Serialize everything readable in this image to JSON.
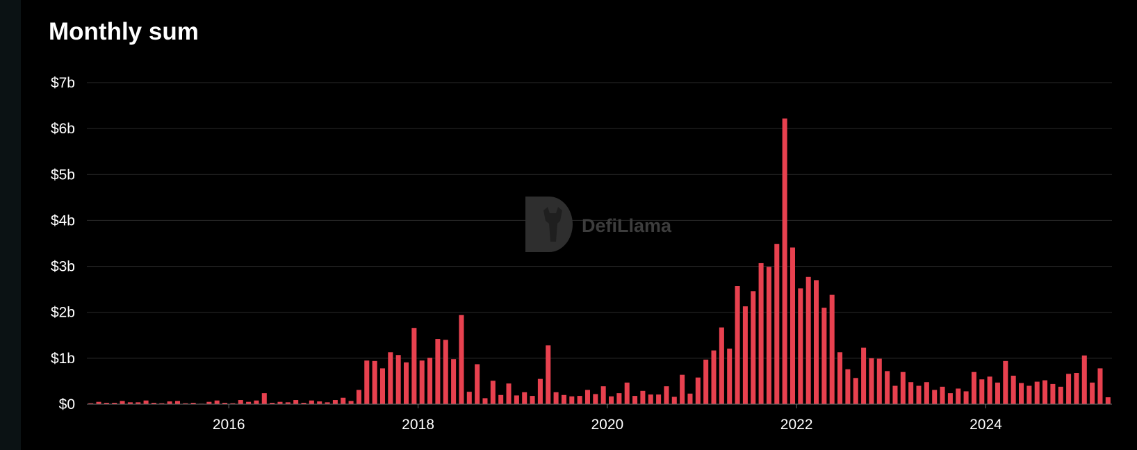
{
  "chart_data": {
    "type": "bar",
    "title": "Monthly sum",
    "xlabel": "",
    "ylabel": "",
    "x_start": "2014-07",
    "x_ticks": [
      "2016",
      "2018",
      "2020",
      "2022",
      "2024"
    ],
    "y_ticks": [
      "$0",
      "$1b",
      "$2b",
      "$3b",
      "$4b",
      "$5b",
      "$6b",
      "$7b"
    ],
    "ylim": [
      0,
      7
    ],
    "y_unit": "billion USD",
    "grid": true,
    "legend": "none",
    "bar_color": "#e8414f",
    "watermark": "DefiLlama",
    "x": [
      "2014-07",
      "2014-08",
      "2014-09",
      "2014-10",
      "2014-11",
      "2014-12",
      "2015-01",
      "2015-02",
      "2015-03",
      "2015-04",
      "2015-05",
      "2015-06",
      "2015-07",
      "2015-08",
      "2015-09",
      "2015-10",
      "2015-11",
      "2015-12",
      "2016-01",
      "2016-02",
      "2016-03",
      "2016-04",
      "2016-05",
      "2016-06",
      "2016-07",
      "2016-08",
      "2016-09",
      "2016-10",
      "2016-11",
      "2016-12",
      "2017-01",
      "2017-02",
      "2017-03",
      "2017-04",
      "2017-05",
      "2017-06",
      "2017-07",
      "2017-08",
      "2017-09",
      "2017-10",
      "2017-11",
      "2017-12",
      "2018-01",
      "2018-02",
      "2018-03",
      "2018-04",
      "2018-05",
      "2018-06",
      "2018-07",
      "2018-08",
      "2018-09",
      "2018-10",
      "2018-11",
      "2018-12",
      "2019-01",
      "2019-02",
      "2019-03",
      "2019-04",
      "2019-05",
      "2019-06",
      "2019-07",
      "2019-08",
      "2019-09",
      "2019-10",
      "2019-11",
      "2019-12",
      "2020-01",
      "2020-02",
      "2020-03",
      "2020-04",
      "2020-05",
      "2020-06",
      "2020-07",
      "2020-08",
      "2020-09",
      "2020-10",
      "2020-11",
      "2020-12",
      "2021-01",
      "2021-02",
      "2021-03",
      "2021-04",
      "2021-05",
      "2021-06",
      "2021-07",
      "2021-08",
      "2021-09",
      "2021-10",
      "2021-11",
      "2021-12",
      "2022-01",
      "2022-02",
      "2022-03",
      "2022-04",
      "2022-05",
      "2022-06",
      "2022-07",
      "2022-08",
      "2022-09",
      "2022-10",
      "2022-11",
      "2022-12",
      "2023-01",
      "2023-02",
      "2023-03",
      "2023-04",
      "2023-05",
      "2023-06",
      "2023-07",
      "2023-08",
      "2023-09",
      "2023-10",
      "2023-11",
      "2023-12",
      "2024-01",
      "2024-02",
      "2024-03",
      "2024-04",
      "2024-05",
      "2024-06",
      "2024-07",
      "2024-08",
      "2024-09",
      "2024-10",
      "2024-11",
      "2024-12",
      "2025-01",
      "2025-02",
      "2025-03",
      "2025-04"
    ],
    "values": [
      0.02,
      0.05,
      0.03,
      0.03,
      0.07,
      0.04,
      0.04,
      0.08,
      0.03,
      0.02,
      0.06,
      0.07,
      0.02,
      0.03,
      0.01,
      0.05,
      0.08,
      0.03,
      0.02,
      0.09,
      0.05,
      0.08,
      0.24,
      0.03,
      0.05,
      0.04,
      0.09,
      0.03,
      0.08,
      0.06,
      0.04,
      0.09,
      0.14,
      0.07,
      0.31,
      0.95,
      0.94,
      0.78,
      1.13,
      1.07,
      0.91,
      1.66,
      0.95,
      1.01,
      1.42,
      1.4,
      0.98,
      1.94,
      0.27,
      0.87,
      0.13,
      0.51,
      0.2,
      0.45,
      0.19,
      0.26,
      0.18,
      0.55,
      1.28,
      0.26,
      0.2,
      0.17,
      0.18,
      0.31,
      0.22,
      0.39,
      0.17,
      0.24,
      0.47,
      0.18,
      0.29,
      0.21,
      0.21,
      0.39,
      0.16,
      0.64,
      0.23,
      0.58,
      0.97,
      1.17,
      1.67,
      1.21,
      2.57,
      2.13,
      2.46,
      3.07,
      2.99,
      3.49,
      6.22,
      3.41,
      2.52,
      2.77,
      2.7,
      2.1,
      2.38,
      1.13,
      0.76,
      0.57,
      1.23,
      1.0,
      0.99,
      0.72,
      0.4,
      0.7,
      0.48,
      0.4,
      0.48,
      0.31,
      0.38,
      0.24,
      0.34,
      0.28,
      0.7,
      0.54,
      0.6,
      0.47,
      0.94,
      0.62,
      0.46,
      0.4,
      0.49,
      0.52,
      0.44,
      0.38,
      0.66,
      0.68,
      1.06,
      0.47,
      0.78,
      0.15
    ]
  }
}
